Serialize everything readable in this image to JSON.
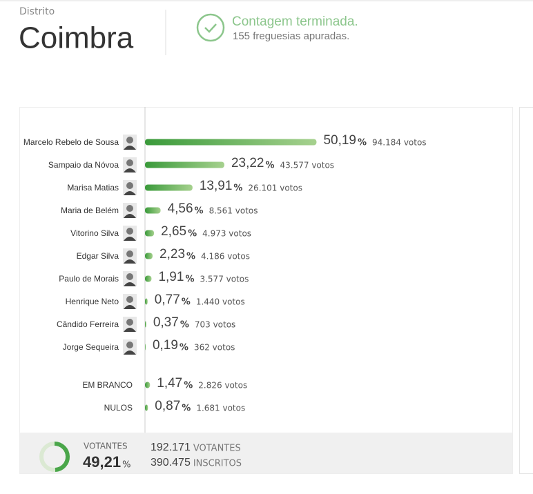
{
  "header": {
    "label": "Distrito",
    "title": "Coimbra"
  },
  "status": {
    "title": "Contagem terminada.",
    "subtitle": "155 freguesias apuradas."
  },
  "chart_data": {
    "type": "bar",
    "orientation": "horizontal",
    "unit": "%",
    "color": "#3f9e3f",
    "categories": [
      "Marcelo Rebelo de Sousa",
      "Sampaio da Nóvoa",
      "Marisa Matias",
      "Maria de Belém",
      "Vitorino Silva",
      "Edgar Silva",
      "Paulo de Morais",
      "Henrique Neto",
      "Cândido Ferreira",
      "Jorge Sequeira"
    ],
    "values": [
      50.19,
      23.22,
      13.91,
      4.56,
      2.65,
      2.23,
      1.91,
      0.77,
      0.37,
      0.19
    ],
    "value_labels": [
      "50,19",
      "23,22",
      "13,91",
      "4,56",
      "2,65",
      "2,23",
      "1,91",
      "0,77",
      "0,37",
      "0,19"
    ],
    "votes": [
      "94.184 votos",
      "43.577 votos",
      "26.101 votos",
      "8.561 votos",
      "4.973 votos",
      "4.186 votos",
      "3.577 votos",
      "1.440 votos",
      "703 votos",
      "362 votos"
    ]
  },
  "blank_null": {
    "categories": [
      "EM BRANCO",
      "NULOS"
    ],
    "values": [
      1.47,
      0.87
    ],
    "value_labels": [
      "1,47",
      "0,87"
    ],
    "votes": [
      "2.826 votos",
      "1.681 votos"
    ]
  },
  "turnout": {
    "label": "VOTANTES",
    "value": 49.21,
    "value_label": "49,21",
    "unit": "%",
    "voters": "192.171",
    "voters_label": "VOTANTES",
    "registered": "390.475",
    "registered_label": "INSCRITOS"
  }
}
